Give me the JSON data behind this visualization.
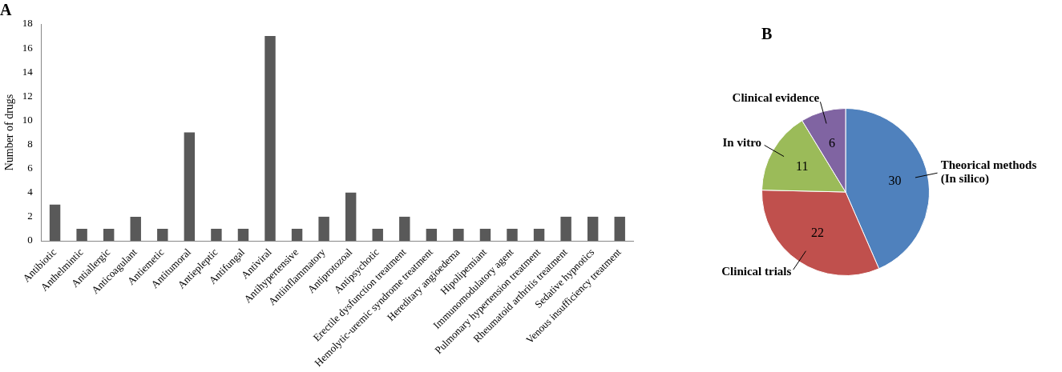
{
  "chart_data": [
    {
      "type": "bar",
      "title": "A",
      "ylabel": "Number of drugs",
      "categories": [
        "Antibiotic",
        "Anthelmintic",
        "Antiallergic",
        "Anticoagulant",
        "Antiemetic",
        "Antitumoral",
        "Antiepleptic",
        "Antifungal",
        "Antiviral",
        "Antihypertensive",
        "Antiinflammatory",
        "Antiprotozoal",
        "Antipsychotic",
        "Erectile dysfunction treatment",
        "Hemolytic-uremic syndrome treatment",
        "Hereditary angioedema",
        "Hipolipemiant",
        "Immunomodulatory agent",
        "Pulmonary hypertension treatment",
        "Rheumatoid arthritis treatment",
        "Sedative hypnotics",
        "Venous insufficiency treatment"
      ],
      "values": [
        3,
        1,
        1,
        2,
        1,
        9,
        1,
        1,
        17,
        1,
        2,
        4,
        1,
        2,
        1,
        1,
        1,
        1,
        1,
        2,
        2,
        2
      ],
      "color": "#595959",
      "ylim": [
        0,
        18
      ],
      "yticks": [
        0,
        2,
        4,
        6,
        8,
        10,
        12,
        14,
        16,
        18
      ],
      "grid": false,
      "legend": false
    },
    {
      "type": "pie",
      "title": "B",
      "categories": [
        "Theorical methods (In silico)",
        "Clinical trials",
        "In vitro",
        "Clinical evidence"
      ],
      "values": [
        30,
        22,
        11,
        6
      ],
      "colors": [
        "#4f81bd",
        "#c0504d",
        "#9bbb59",
        "#8064a2"
      ],
      "data_labels": true,
      "legend": false
    }
  ]
}
